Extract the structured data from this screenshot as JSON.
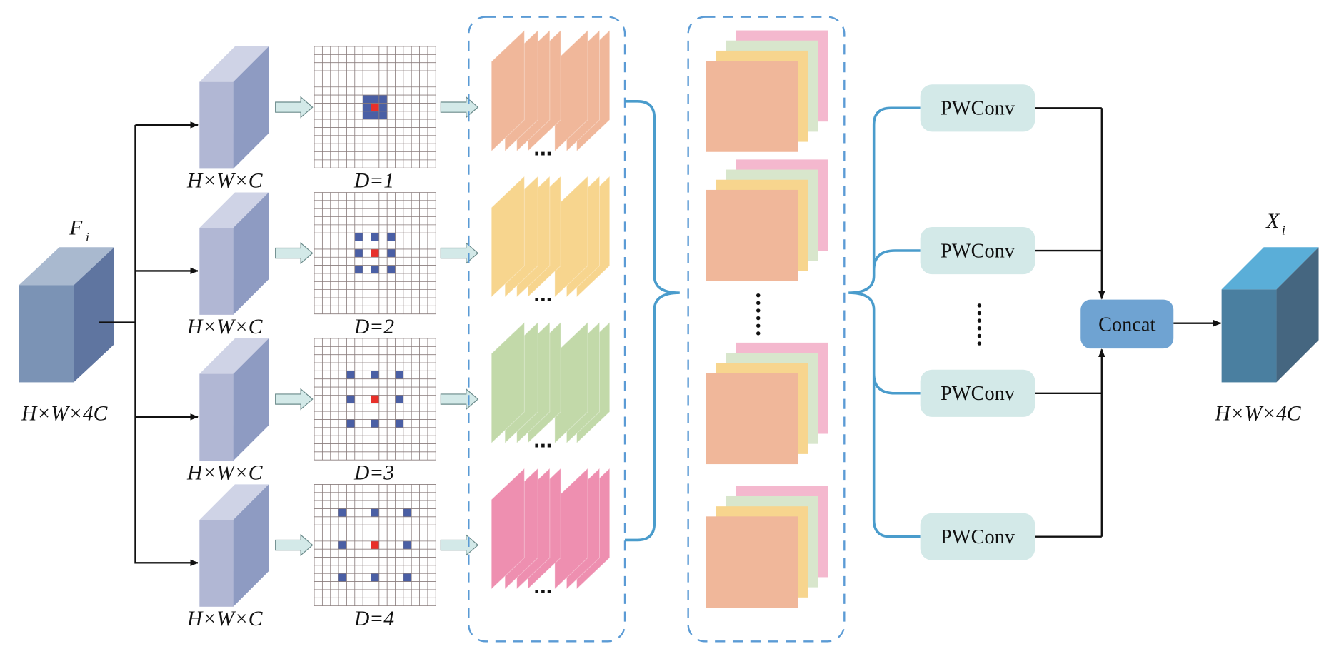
{
  "input": {
    "symbol": "F",
    "subscript": "i",
    "shape": "H×W×4C"
  },
  "branches": [
    {
      "shape": "H×W×C",
      "dilation_label": "D=1",
      "dilation": 1,
      "color": "#f0b79a"
    },
    {
      "shape": "H×W×C",
      "dilation_label": "D=2",
      "dilation": 2,
      "color": "#f7d58e"
    },
    {
      "shape": "H×W×C",
      "dilation_label": "D=3",
      "dilation": 3,
      "color": "#c2d9a9"
    },
    {
      "shape": "H×W×C",
      "dilation_label": "D=4",
      "dilation": 4,
      "color": "#ee8fb0"
    }
  ],
  "ellipsis": "…",
  "stack_colors": [
    "#f0b79a",
    "#f7d58e",
    "#d8e6cc",
    "#f4b8ce"
  ],
  "pwconv": [
    "PWConv",
    "PWConv",
    "PWConv",
    "PWConv"
  ],
  "concat": "Concat",
  "output": {
    "symbol": "X",
    "subscript": "i",
    "shape": "H×W×4C"
  },
  "colors": {
    "dashed_box": "#5b9bd5",
    "brace": "#4a9ccc",
    "pwconv_fill": "#d3e9e8",
    "concat_fill": "#6fa3d2",
    "kernel": "#4a5fa5",
    "kernel_center": "#e8302a"
  }
}
